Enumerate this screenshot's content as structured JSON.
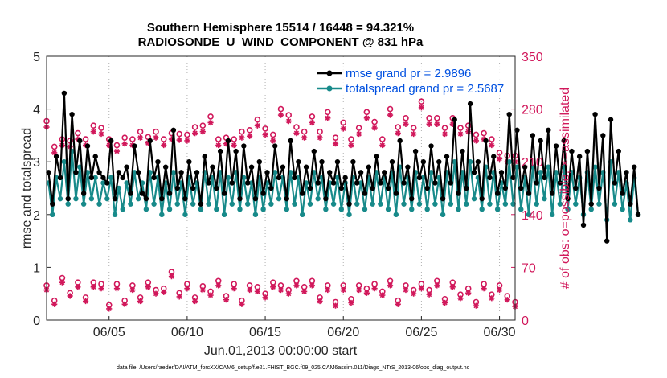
{
  "chart_data": {
    "type": "line",
    "title_line1": "Southern Hemisphere 15514 / 16448 = 94.321%",
    "title_line2": "RADIOSONDE_U_WIND_COMPONENT @ 831 hPa",
    "xlabel": "Jun.01,2013 00:00:00 start",
    "ylabel_left": "rmse and totalspread",
    "ylabel_right": "# of obs: o=possible; ×=assimilated",
    "footnote": "data file: /Users/raeder/DAI/ATM_forcXX/CAM6_setup/f.e21.FHIST_BGC.f09_025.CAM6assim.011/Diags_NTrS_2013-06/obs_diag_output.nc",
    "xlim": [
      1,
      31
    ],
    "ylim_left": [
      0,
      5
    ],
    "ylim_right": [
      0,
      350
    ],
    "x_ticks": [
      {
        "value": 5,
        "label": "06/05"
      },
      {
        "value": 10,
        "label": "06/10"
      },
      {
        "value": 15,
        "label": "06/15"
      },
      {
        "value": 20,
        "label": "06/20"
      },
      {
        "value": 25,
        "label": "06/25"
      },
      {
        "value": 30,
        "label": "06/30"
      }
    ],
    "y_ticks_left": [
      "0",
      "1",
      "2",
      "3",
      "4",
      "5"
    ],
    "y_ticks_right": [
      "0",
      "70",
      "140",
      "210",
      "280",
      "350"
    ],
    "legend": [
      {
        "name": "rmse grand pr = 2.9896",
        "color": "#000000"
      },
      {
        "name": "totalspread grand pr = 2.5687",
        "color": "#178a8a"
      }
    ],
    "x_start": 1.125,
    "x_step": 0.25,
    "rmse": [
      2.8,
      2.2,
      3.1,
      2.7,
      4.3,
      2.3,
      3.9,
      2.8,
      3.4,
      2.4,
      3.3,
      2.7,
      3.1,
      2.8,
      2.7,
      2.6,
      3.4,
      2.3,
      2.8,
      2.7,
      2.9,
      2.4,
      3.3,
      2.8,
      2.4,
      2.3,
      3.4,
      2.7,
      3.0,
      2.3,
      2.9,
      2.4,
      3.6,
      2.5,
      2.8,
      2.3,
      3.0,
      2.5,
      2.8,
      2.2,
      3.1,
      2.6,
      2.9,
      2.5,
      3.2,
      2.4,
      3.4,
      2.6,
      3.2,
      2.3,
      3.3,
      2.6,
      2.9,
      2.3,
      3.0,
      2.4,
      2.8,
      2.5,
      3.3,
      2.7,
      2.9,
      2.3,
      3.4,
      2.7,
      3.0,
      2.4,
      2.9,
      2.5,
      3.2,
      2.6,
      3.0,
      2.3,
      2.8,
      2.6,
      3.0,
      2.5,
      2.7,
      2.2,
      3.0,
      2.6,
      2.8,
      2.4,
      2.9,
      2.5,
      3.1,
      2.6,
      2.8,
      2.5,
      3.0,
      2.4,
      3.4,
      2.6,
      2.9,
      2.3,
      3.2,
      2.7,
      3.0,
      2.5,
      3.3,
      2.6,
      3.0,
      2.3,
      3.1,
      2.6,
      3.8,
      2.4,
      3.2,
      2.5,
      4.1,
      2.8,
      3.0,
      2.3,
      3.4,
      2.7,
      3.1,
      2.4,
      2.8,
      2.5,
      3.9,
      2.7,
      3.6,
      2.5,
      2.9,
      2.4,
      3.5,
      2.6,
      3.4,
      2.7,
      3.6,
      2.4,
      3.3,
      2.6,
      3.4,
      2.3,
      3.2,
      2.5,
      3.1,
      1.8,
      3.2,
      2.2,
      3.9,
      2.5,
      3.5,
      1.5,
      3.8,
      2.6,
      3.2,
      2.4,
      2.8,
      2.2,
      2.9,
      2.0
    ],
    "totalspread": [
      2.6,
      2.0,
      2.7,
      2.3,
      3.0,
      2.2,
      3.2,
      2.3,
      2.9,
      2.2,
      2.8,
      2.3,
      2.7,
      2.2,
      2.6,
      2.3,
      2.7,
      2.0,
      2.5,
      2.1,
      2.6,
      2.2,
      2.8,
      2.3,
      2.6,
      2.1,
      2.8,
      2.2,
      2.7,
      2.0,
      2.6,
      2.1,
      2.8,
      2.2,
      2.6,
      2.0,
      2.7,
      2.2,
      2.6,
      2.1,
      2.8,
      2.2,
      2.7,
      2.1,
      2.8,
      2.0,
      2.7,
      2.2,
      2.8,
      2.1,
      2.7,
      2.2,
      2.6,
      2.0,
      2.7,
      2.1,
      2.6,
      2.2,
      2.8,
      2.3,
      2.7,
      2.1,
      2.8,
      2.2,
      2.7,
      2.0,
      2.6,
      2.2,
      2.8,
      2.3,
      2.7,
      2.1,
      2.6,
      2.2,
      2.7,
      2.1,
      2.6,
      2.0,
      2.7,
      2.2,
      2.6,
      2.1,
      2.7,
      2.2,
      2.8,
      2.2,
      2.7,
      2.1,
      2.8,
      2.0,
      2.9,
      2.2,
      2.7,
      2.1,
      2.8,
      2.2,
      2.7,
      2.1,
      2.8,
      2.2,
      2.7,
      2.0,
      2.8,
      2.2,
      3.0,
      2.1,
      2.8,
      2.2,
      3.0,
      2.3,
      2.7,
      2.1,
      2.9,
      2.2,
      2.8,
      2.1,
      2.6,
      2.2,
      3.0,
      2.2,
      2.9,
      2.1,
      2.7,
      2.0,
      2.9,
      2.2,
      2.8,
      2.3,
      2.9,
      2.0,
      2.8,
      2.2,
      2.9,
      2.1,
      2.8,
      2.2,
      2.7,
      2.0,
      2.8,
      2.1,
      2.9,
      2.2,
      2.8,
      1.9,
      3.0,
      2.2,
      2.8,
      2.1,
      2.6,
      1.9,
      2.7,
      2.0
    ],
    "obs_high_x_start": 1.0,
    "obs_high_x_step": 0.5,
    "obs_possible_high": [
      264,
      230,
      240,
      238,
      248,
      240,
      258,
      255,
      240,
      232,
      242,
      240,
      250,
      243,
      250,
      240,
      248,
      247,
      246,
      256,
      258,
      270,
      240,
      242,
      240,
      250,
      252,
      266,
      254,
      246,
      280,
      272,
      256,
      250,
      270,
      250,
      276,
      242,
      262,
      240,
      255,
      276,
      263,
      240,
      280,
      256,
      268,
      255,
      290,
      268,
      268,
      255,
      268,
      255,
      258,
      246,
      248,
      240,
      222,
      218,
      218
    ],
    "obs_assim_high": [
      256,
      222,
      232,
      230,
      240,
      232,
      250,
      247,
      232,
      224,
      234,
      232,
      242,
      235,
      242,
      232,
      240,
      239,
      238,
      248,
      250,
      262,
      232,
      234,
      232,
      242,
      244,
      258,
      246,
      238,
      272,
      264,
      248,
      242,
      262,
      242,
      268,
      234,
      254,
      232,
      247,
      268,
      255,
      232,
      272,
      248,
      260,
      247,
      282,
      260,
      260,
      247,
      260,
      247,
      250,
      238,
      240,
      232,
      214,
      210,
      210
    ],
    "obs_low_x_start": 1.0,
    "obs_low_x_step": 0.5,
    "obs_possible_low": [
      46,
      26,
      56,
      36,
      50,
      30,
      50,
      48,
      20,
      48,
      26,
      46,
      30,
      50,
      40,
      42,
      64,
      36,
      48,
      30,
      45,
      38,
      52,
      32,
      48,
      26,
      46,
      44,
      35,
      50,
      46,
      40,
      52,
      44,
      52,
      30,
      46,
      24,
      46,
      28,
      46,
      42,
      48,
      38,
      52,
      26,
      46,
      40,
      48,
      40,
      52,
      28,
      50,
      34,
      42,
      24,
      48,
      34,
      46,
      32,
      24
    ],
    "obs_assim_low": [
      40,
      21,
      50,
      32,
      44,
      25,
      44,
      42,
      15,
      42,
      21,
      40,
      25,
      44,
      35,
      37,
      58,
      31,
      42,
      25,
      40,
      33,
      46,
      27,
      42,
      21,
      40,
      38,
      30,
      44,
      40,
      35,
      46,
      38,
      46,
      25,
      40,
      19,
      40,
      23,
      40,
      36,
      42,
      33,
      46,
      21,
      40,
      35,
      42,
      34,
      46,
      23,
      44,
      29,
      36,
      19,
      42,
      29,
      40,
      27,
      18
    ]
  }
}
